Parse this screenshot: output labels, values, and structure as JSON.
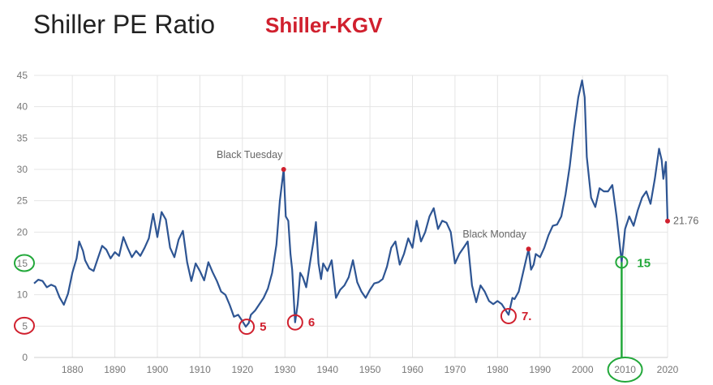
{
  "title": "Shiller PE Ratio",
  "subtitle": "Shiller-KGV",
  "colors": {
    "line": "#2e5593",
    "marker": "#d0202e",
    "red_circle": "#d0202e",
    "green_circle": "#22a83a",
    "grid": "#e4e4e4",
    "tick_text": "#777777"
  },
  "chart_data": {
    "type": "line",
    "title": "Shiller PE Ratio",
    "subtitle": "Shiller-KGV",
    "xlabel": "",
    "ylabel": "",
    "xlim": [
      1871,
      2020
    ],
    "ylim": [
      0,
      45
    ],
    "grid": true,
    "y_ticks": [
      0,
      5,
      10,
      15,
      20,
      25,
      30,
      35,
      40,
      45
    ],
    "x_ticks": [
      1880,
      1890,
      1900,
      1910,
      1920,
      1930,
      1940,
      1950,
      1960,
      1970,
      1980,
      1990,
      2000,
      2010,
      2020
    ],
    "series": [
      {
        "name": "Shiller PE Ratio",
        "points": [
          [
            1871,
            11.8
          ],
          [
            1872,
            12.4
          ],
          [
            1873,
            12.2
          ],
          [
            1874,
            11.2
          ],
          [
            1875,
            11.6
          ],
          [
            1876,
            11.3
          ],
          [
            1877,
            9.6
          ],
          [
            1878,
            8.4
          ],
          [
            1879,
            10.2
          ],
          [
            1880,
            13.5
          ],
          [
            1881,
            15.8
          ],
          [
            1881.6,
            18.5
          ],
          [
            1882.5,
            17.0
          ],
          [
            1883,
            15.5
          ],
          [
            1884,
            14.2
          ],
          [
            1885,
            13.8
          ],
          [
            1886,
            15.8
          ],
          [
            1887,
            17.8
          ],
          [
            1888,
            17.2
          ],
          [
            1889,
            15.8
          ],
          [
            1890,
            16.8
          ],
          [
            1891,
            16.2
          ],
          [
            1892,
            19.2
          ],
          [
            1893,
            17.5
          ],
          [
            1894,
            16.0
          ],
          [
            1895,
            17.0
          ],
          [
            1896,
            16.2
          ],
          [
            1897,
            17.5
          ],
          [
            1898,
            19.0
          ],
          [
            1899,
            22.9
          ],
          [
            1900,
            19.2
          ],
          [
            1901,
            23.2
          ],
          [
            1902,
            22.0
          ],
          [
            1903,
            17.5
          ],
          [
            1904,
            16.0
          ],
          [
            1905,
            18.8
          ],
          [
            1906,
            20.2
          ],
          [
            1907,
            15.2
          ],
          [
            1908,
            12.2
          ],
          [
            1909,
            15.0
          ],
          [
            1910,
            13.8
          ],
          [
            1911,
            12.3
          ],
          [
            1912,
            15.2
          ],
          [
            1913,
            13.6
          ],
          [
            1914,
            12.2
          ],
          [
            1915,
            10.5
          ],
          [
            1916,
            10.0
          ],
          [
            1917,
            8.4
          ],
          [
            1918,
            6.5
          ],
          [
            1919,
            6.8
          ],
          [
            1920,
            5.8
          ],
          [
            1920.8,
            4.9
          ],
          [
            1921.5,
            5.5
          ],
          [
            1922,
            6.8
          ],
          [
            1923,
            7.5
          ],
          [
            1924,
            8.5
          ],
          [
            1925,
            9.5
          ],
          [
            1926,
            11.0
          ],
          [
            1927,
            13.5
          ],
          [
            1928,
            18.0
          ],
          [
            1928.8,
            25.0
          ],
          [
            1929.7,
            30.0
          ],
          [
            1930.2,
            22.5
          ],
          [
            1930.8,
            21.8
          ],
          [
            1931.3,
            16.5
          ],
          [
            1931.7,
            14.0
          ],
          [
            1932.4,
            5.6
          ],
          [
            1933,
            8.5
          ],
          [
            1933.6,
            13.5
          ],
          [
            1934.2,
            12.8
          ],
          [
            1935,
            11.2
          ],
          [
            1936,
            15.5
          ],
          [
            1936.7,
            18.5
          ],
          [
            1937.3,
            21.6
          ],
          [
            1937.9,
            15.0
          ],
          [
            1938.5,
            12.5
          ],
          [
            1939,
            15.0
          ],
          [
            1940,
            13.8
          ],
          [
            1941,
            15.5
          ],
          [
            1942,
            9.5
          ],
          [
            1943,
            10.8
          ],
          [
            1944,
            11.5
          ],
          [
            1945,
            12.8
          ],
          [
            1946,
            15.5
          ],
          [
            1947,
            12.0
          ],
          [
            1948,
            10.5
          ],
          [
            1949,
            9.5
          ],
          [
            1950,
            10.8
          ],
          [
            1951,
            11.8
          ],
          [
            1952,
            12.0
          ],
          [
            1953,
            12.5
          ],
          [
            1954,
            14.5
          ],
          [
            1955,
            17.5
          ],
          [
            1956,
            18.5
          ],
          [
            1957,
            14.8
          ],
          [
            1958,
            16.5
          ],
          [
            1959,
            19.0
          ],
          [
            1960,
            17.5
          ],
          [
            1961,
            21.8
          ],
          [
            1962,
            18.5
          ],
          [
            1963,
            20.0
          ],
          [
            1964,
            22.5
          ],
          [
            1965,
            23.8
          ],
          [
            1966,
            20.5
          ],
          [
            1967,
            21.8
          ],
          [
            1968,
            21.5
          ],
          [
            1969,
            20.0
          ],
          [
            1970,
            15.0
          ],
          [
            1971,
            16.5
          ],
          [
            1972,
            17.5
          ],
          [
            1973,
            18.5
          ],
          [
            1974,
            11.5
          ],
          [
            1975,
            8.8
          ],
          [
            1976,
            11.5
          ],
          [
            1977,
            10.5
          ],
          [
            1978,
            9.0
          ],
          [
            1979,
            8.5
          ],
          [
            1980,
            9.0
          ],
          [
            1981,
            8.5
          ],
          [
            1982.6,
            6.8
          ],
          [
            1983.5,
            9.5
          ],
          [
            1984,
            9.3
          ],
          [
            1985,
            10.5
          ],
          [
            1986,
            13.5
          ],
          [
            1987.3,
            17.3
          ],
          [
            1987.9,
            14.0
          ],
          [
            1988.5,
            14.8
          ],
          [
            1989,
            16.5
          ],
          [
            1990,
            16.0
          ],
          [
            1991,
            17.5
          ],
          [
            1992,
            19.5
          ],
          [
            1993,
            21.0
          ],
          [
            1994,
            21.2
          ],
          [
            1995,
            22.5
          ],
          [
            1996,
            26.0
          ],
          [
            1997,
            30.5
          ],
          [
            1998,
            36.5
          ],
          [
            1999,
            41.5
          ],
          [
            1999.9,
            44.2
          ],
          [
            2000.5,
            41.5
          ],
          [
            2001,
            32.0
          ],
          [
            2002,
            25.5
          ],
          [
            2003,
            24.0
          ],
          [
            2004,
            27.0
          ],
          [
            2005,
            26.5
          ],
          [
            2006,
            26.5
          ],
          [
            2007,
            27.5
          ],
          [
            2008,
            22.5
          ],
          [
            2009.2,
            15.2
          ],
          [
            2010,
            20.5
          ],
          [
            2011,
            22.5
          ],
          [
            2012,
            21.0
          ],
          [
            2013,
            23.5
          ],
          [
            2014,
            25.5
          ],
          [
            2015,
            26.5
          ],
          [
            2016,
            24.5
          ],
          [
            2017,
            28.5
          ],
          [
            2018,
            33.3
          ],
          [
            2018.6,
            31.5
          ],
          [
            2019,
            28.5
          ],
          [
            2019.6,
            31.2
          ],
          [
            2020,
            21.76
          ]
        ]
      }
    ],
    "end_value_label": "21.76",
    "annotations": [
      {
        "label": "Black Tuesday",
        "x": 1929.7,
        "y": 30.0
      },
      {
        "label": "Black Monday",
        "x": 1987.3,
        "y": 17.3
      }
    ],
    "highlight_markers": [
      {
        "x": 1929.7,
        "y": 30.0
      },
      {
        "x": 1987.3,
        "y": 17.3
      },
      {
        "x": 2020,
        "y": 21.76
      }
    ],
    "red_circles": [
      {
        "label": "5",
        "x": 1921.0,
        "y": 4.9
      },
      {
        "label": "6",
        "x": 1932.4,
        "y": 5.6
      },
      {
        "label": "7.",
        "x": 1982.6,
        "y": 6.6
      }
    ],
    "green_circles": [
      {
        "label": "15",
        "x": 2009.2,
        "y": 15.2
      }
    ],
    "axis_circles": [
      {
        "tick": 15,
        "color": "green"
      },
      {
        "tick": 5,
        "color": "red"
      },
      {
        "tick": 2010,
        "color": "green"
      }
    ]
  }
}
